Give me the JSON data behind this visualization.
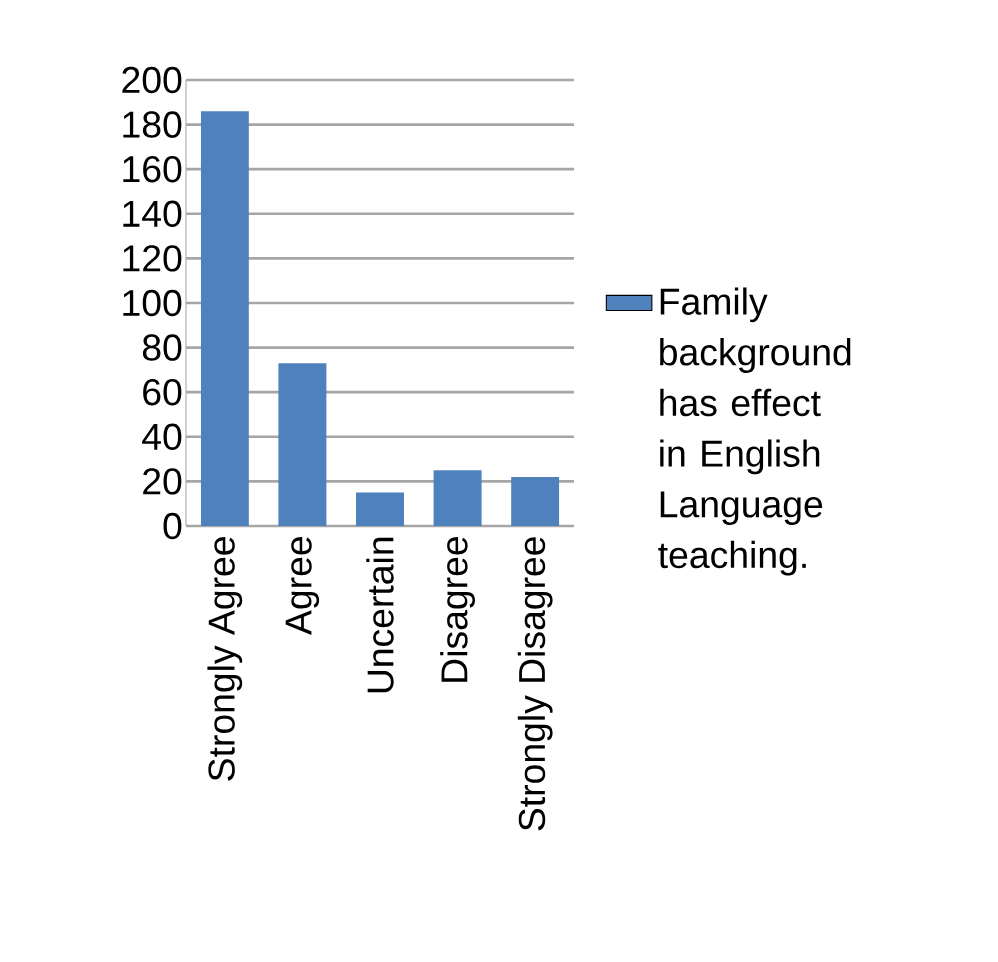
{
  "chart_data": {
    "type": "bar",
    "categories": [
      "Strongly Agree",
      "Agree",
      "Uncertain",
      "Disagree",
      "Strongly Disagree"
    ],
    "series": [
      {
        "name": "Family background has effect in English Language teaching.",
        "color": "#4f81bd",
        "values": [
          186,
          73,
          15,
          25,
          22
        ]
      }
    ],
    "ylim": [
      0,
      200
    ],
    "yticks": [
      0,
      20,
      40,
      60,
      80,
      100,
      120,
      140,
      160,
      180,
      200
    ],
    "grid": "y",
    "legend": "right"
  }
}
